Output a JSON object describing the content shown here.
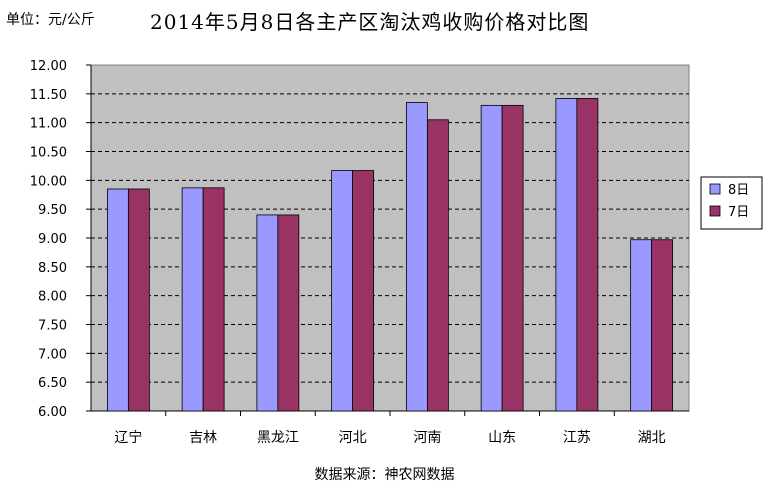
{
  "unit_label": "单位：元/公斤",
  "source_label": "数据来源：神农网数据",
  "chart_data": {
    "type": "bar",
    "title": "2014年5月8日各主产区淘汰鸡收购价格对比图",
    "categories": [
      "辽宁",
      "吉林",
      "黑龙江",
      "河北",
      "河南",
      "山东",
      "江苏",
      "湖北"
    ],
    "series": [
      {
        "name": "8日",
        "color": "#9999ff",
        "values": [
          9.85,
          9.87,
          9.4,
          10.17,
          11.35,
          11.3,
          11.42,
          8.97
        ]
      },
      {
        "name": "7日",
        "color": "#993366",
        "values": [
          9.85,
          9.87,
          9.4,
          10.17,
          11.05,
          11.3,
          11.42,
          8.97
        ]
      }
    ],
    "ylim": [
      6.0,
      12.0
    ],
    "yticks": [
      "6.00",
      "6.50",
      "7.00",
      "7.50",
      "8.00",
      "8.50",
      "9.00",
      "9.50",
      "10.00",
      "10.50",
      "11.00",
      "11.50",
      "12.00"
    ],
    "grid": true,
    "plot_background": "#c0c0c0",
    "legend": "right"
  }
}
